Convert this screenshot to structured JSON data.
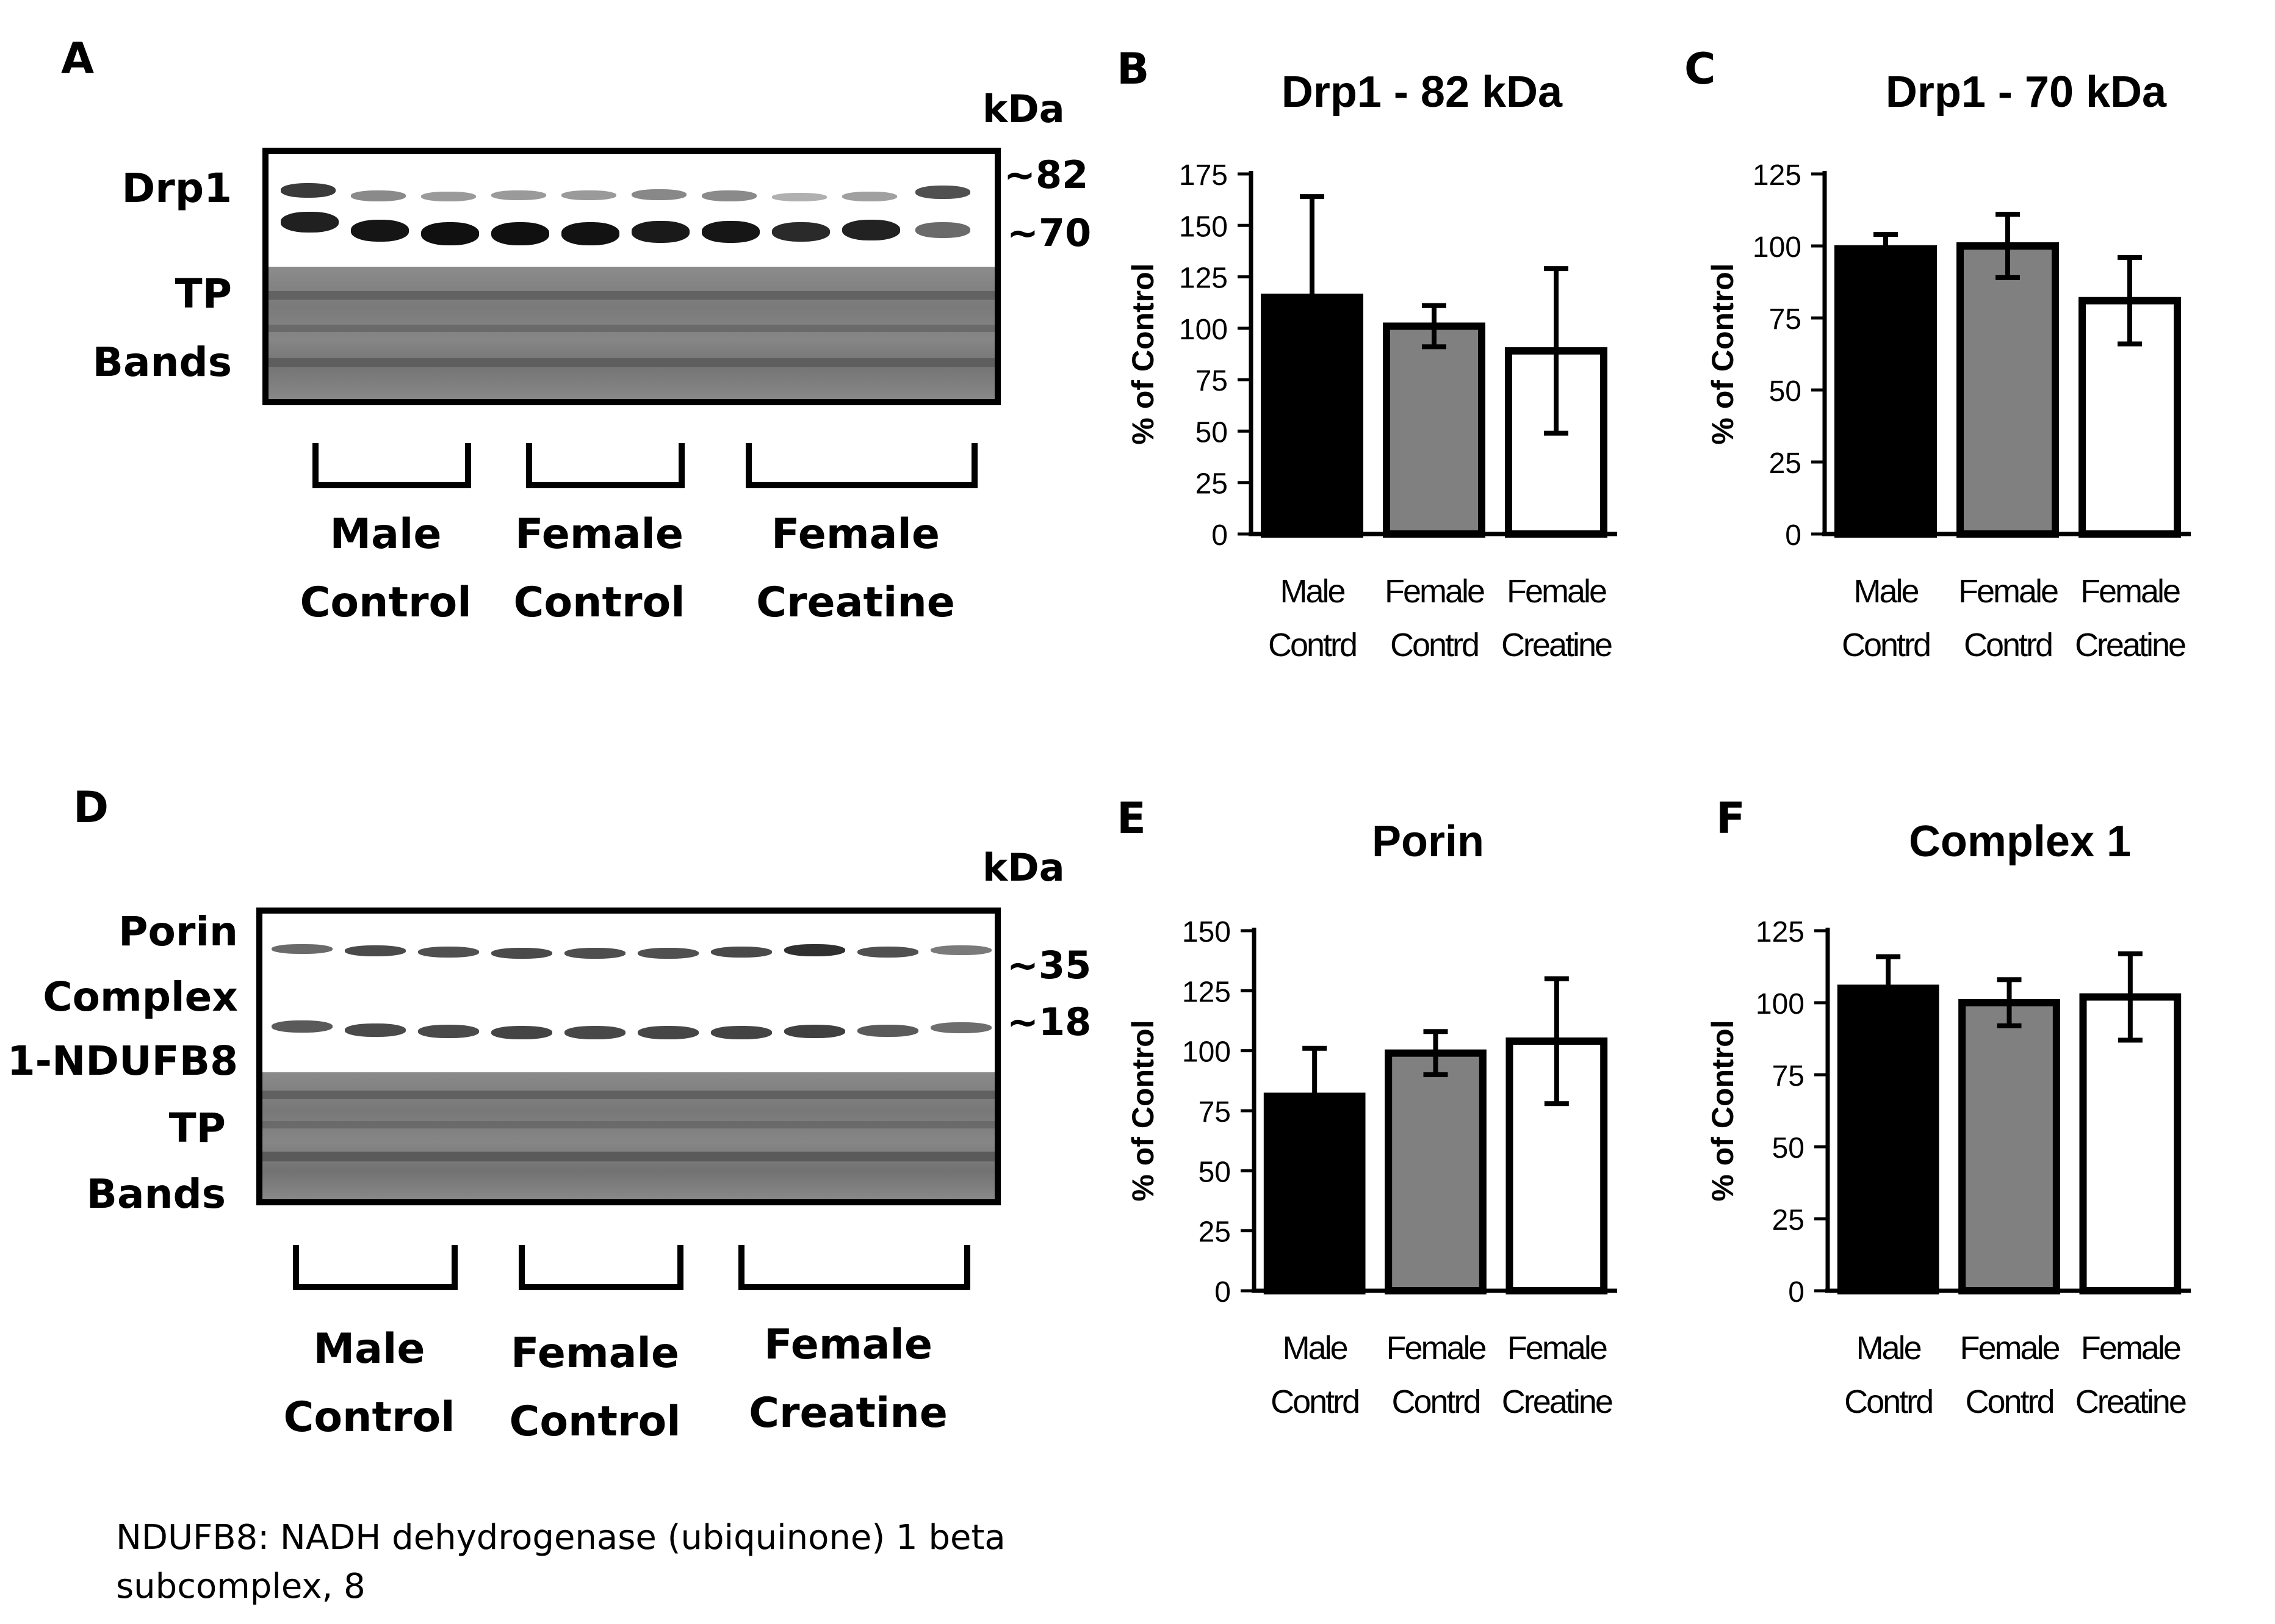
{
  "panel_letters": {
    "a": "A",
    "b": "B",
    "c": "C",
    "d": "D",
    "e": "E",
    "f": "F"
  },
  "blot_top": {
    "protein_label": "Drp1",
    "tp_label_1": "TP",
    "tp_label_2": "Bands",
    "kda_label": "kDa",
    "markers": [
      "~82",
      "~70"
    ],
    "groups": [
      {
        "line1": "Male",
        "line2": "Control"
      },
      {
        "line1": "Female",
        "line2": "Control"
      },
      {
        "line1": "Female",
        "line2": "Creatine"
      }
    ]
  },
  "blot_bottom": {
    "protein_label_1": "Porin",
    "protein_label_2": "Complex",
    "protein_label_3": "1-NDUFB8",
    "tp_label_1": "TP",
    "tp_label_2": "Bands",
    "kda_label": "kDa",
    "markers": [
      "~35",
      "~18"
    ],
    "groups": [
      {
        "line1": "Male",
        "line2": "Control"
      },
      {
        "line1": "Female",
        "line2": "Control"
      },
      {
        "line1": "Female",
        "line2": "Creatine"
      }
    ]
  },
  "footnote": {
    "line1": "NDUFB8: NADH dehydrogenase (ubiquinone) 1 beta",
    "line2": "subcomplex, 8"
  },
  "colors": {
    "male_control": "#000000",
    "female_control": "#808080",
    "female_creatine": "#ffffff"
  },
  "chart_data": [
    {
      "id": "B",
      "type": "bar",
      "title": "Drp1 - 82 kDa",
      "ylabel": "% of Control",
      "xlabel": "",
      "categories": [
        [
          "Male",
          "Contrd"
        ],
        [
          "Female",
          "Contrd"
        ],
        [
          "Female",
          "Creatine"
        ]
      ],
      "values": [
        115,
        101,
        89
      ],
      "errors": [
        49,
        10,
        40
      ],
      "ylim": [
        0,
        175
      ],
      "yticks": [
        0,
        25,
        50,
        75,
        100,
        125,
        150,
        175
      ]
    },
    {
      "id": "C",
      "type": "bar",
      "title": "Drp1  - 70 kDa",
      "ylabel": "% of Control",
      "xlabel": "",
      "categories": [
        [
          "Male",
          "Contrd"
        ],
        [
          "Female",
          "Contrd"
        ],
        [
          "Female",
          "Creatine"
        ]
      ],
      "values": [
        99,
        100,
        81
      ],
      "errors": [
        5,
        11,
        15
      ],
      "ylim": [
        0,
        125
      ],
      "yticks": [
        0,
        25,
        50,
        75,
        100,
        125
      ]
    },
    {
      "id": "E",
      "type": "bar",
      "title": "Porin",
      "ylabel": "% of Control",
      "xlabel": "",
      "categories": [
        [
          "Male",
          "Contrd"
        ],
        [
          "Female",
          "Contrd"
        ],
        [
          "Female",
          "Creatine"
        ]
      ],
      "values": [
        81,
        99,
        104
      ],
      "errors": [
        20,
        9,
        26
      ],
      "ylim": [
        0,
        150
      ],
      "yticks": [
        0,
        25,
        50,
        75,
        100,
        125,
        150
      ]
    },
    {
      "id": "F",
      "type": "bar",
      "title": "Complex 1",
      "ylabel": "% of Control",
      "xlabel": "",
      "categories": [
        [
          "Male",
          "Contrd"
        ],
        [
          "Female",
          "Contrd"
        ],
        [
          "Female",
          "Creatine"
        ]
      ],
      "values": [
        105,
        100,
        102
      ],
      "errors": [
        11,
        8,
        15
      ],
      "ylim": [
        0,
        125
      ],
      "yticks": [
        0,
        25,
        50,
        75,
        100,
        125
      ]
    }
  ]
}
